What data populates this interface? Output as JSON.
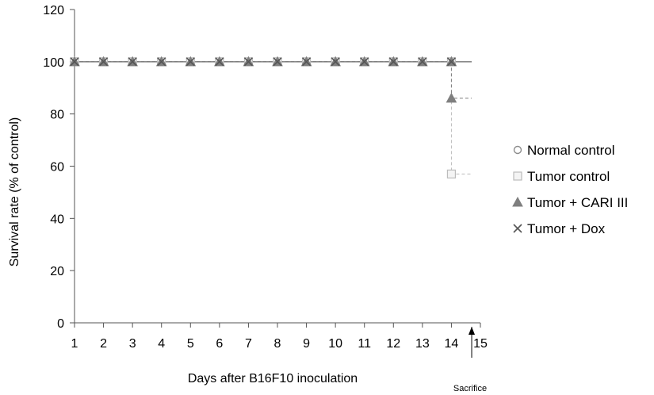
{
  "chart_data": {
    "type": "line",
    "title": "",
    "xlabel": "Days after B16F10 inoculation",
    "ylabel": "Survival rate (% of control)",
    "xlim": [
      1,
      15
    ],
    "ylim": [
      0,
      120
    ],
    "x_ticks": [
      1,
      2,
      3,
      4,
      5,
      6,
      7,
      8,
      9,
      10,
      11,
      12,
      13,
      14,
      15
    ],
    "y_ticks": [
      0,
      20,
      40,
      60,
      80,
      100,
      120
    ],
    "grid": false,
    "legend_position": "right",
    "annotation": {
      "label": "Sacrifice",
      "x": 14.7
    },
    "series": [
      {
        "name": "Normal control",
        "marker": "circle",
        "color": "#8c8c8c",
        "x": [
          1,
          2,
          3,
          4,
          5,
          6,
          7,
          8,
          9,
          10,
          11,
          12,
          13,
          14,
          14.7
        ],
        "y": [
          100,
          100,
          100,
          100,
          100,
          100,
          100,
          100,
          100,
          100,
          100,
          100,
          100,
          100,
          100
        ],
        "marker_count": 14
      },
      {
        "name": "Tumor control",
        "marker": "square",
        "color": "#bcbcbc",
        "x": [
          1,
          2,
          3,
          4,
          5,
          6,
          7,
          8,
          9,
          10,
          11,
          12,
          13,
          14,
          14,
          14.7
        ],
        "y": [
          100,
          100,
          100,
          100,
          100,
          100,
          100,
          100,
          100,
          100,
          100,
          100,
          100,
          100,
          57,
          57
        ],
        "marker_count": 15
      },
      {
        "name": "Tumor +  CARI III",
        "marker": "triangle",
        "color": "#7f7f7f",
        "x": [
          1,
          2,
          3,
          4,
          5,
          6,
          7,
          8,
          9,
          10,
          11,
          12,
          13,
          14,
          14,
          14.7
        ],
        "y": [
          100,
          100,
          100,
          100,
          100,
          100,
          100,
          100,
          100,
          100,
          100,
          100,
          100,
          100,
          86,
          86
        ],
        "marker_count": 15
      },
      {
        "name": "Tumor + Dox",
        "marker": "x",
        "color": "#555555",
        "x": [
          1,
          2,
          3,
          4,
          5,
          6,
          7,
          8,
          9,
          10,
          11,
          12,
          13,
          14,
          14.7
        ],
        "y": [
          100,
          100,
          100,
          100,
          100,
          100,
          100,
          100,
          100,
          100,
          100,
          100,
          100,
          100,
          100
        ],
        "marker_count": 14
      }
    ]
  }
}
